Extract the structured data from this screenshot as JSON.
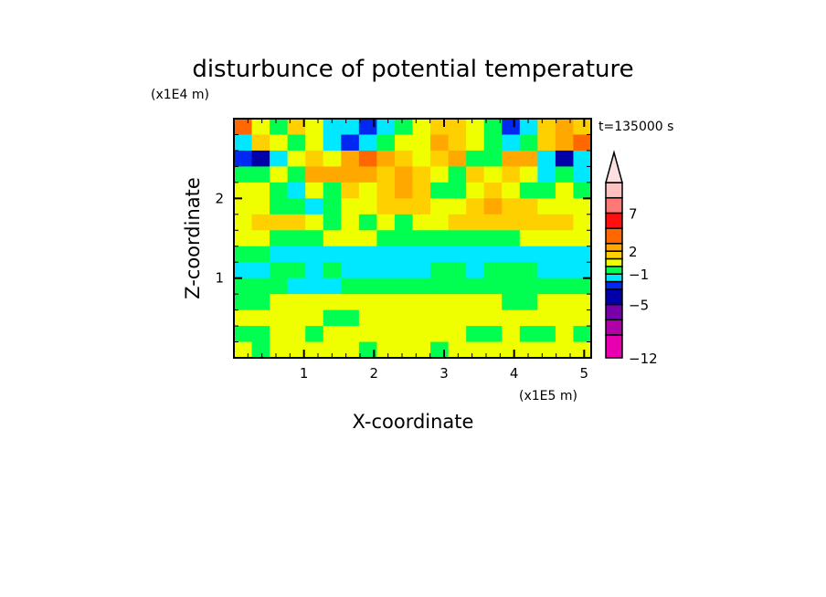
{
  "chart_data": {
    "type": "heatmap",
    "title": "disturbunce of potential temperature",
    "xlabel": "X-coordinate",
    "ylabel": "Z-coordinate",
    "x_unit": "(x1E5 m)",
    "y_unit": "(x1E4 m)",
    "annotation": "t=135000 s",
    "xlim": [
      0,
      5.1
    ],
    "ylim": [
      0,
      3.0
    ],
    "x_ticks": [
      "1",
      "2",
      "3",
      "4",
      "5"
    ],
    "x_tick_values": [
      1,
      2,
      3,
      4,
      5
    ],
    "y_ticks": [
      "1",
      "2"
    ],
    "y_tick_values": [
      1,
      2
    ],
    "minor_tick_step": 0.2,
    "grid": false,
    "colorbar": {
      "levels": [
        -12,
        -9,
        -7,
        -5,
        -3,
        -2,
        -1,
        0,
        1,
        2,
        3,
        5,
        7,
        9,
        11
      ],
      "colors": [
        "#e800b0",
        "#b000a8",
        "#7800a8",
        "#0000a8",
        "#0028f0",
        "#00e8ff",
        "#00ff50",
        "#f0ff00",
        "#ffd000",
        "#ffa800",
        "#ff6800",
        "#ff1010",
        "#ff7878",
        "#ffc0c0"
      ],
      "over_color": "#ffe0e0",
      "labels": [
        "-12",
        "-5",
        "-1",
        "2",
        "7"
      ],
      "label_values": [
        -12,
        -5,
        -1,
        2,
        7
      ]
    },
    "grid_x_centers": [
      0.13,
      0.38,
      0.64,
      0.89,
      1.15,
      1.4,
      1.66,
      1.91,
      2.17,
      2.42,
      2.68,
      2.93,
      3.19,
      3.44,
      3.7,
      3.95,
      4.21,
      4.46,
      4.72,
      4.97
    ],
    "grid_z_centers": [
      2.9,
      2.7,
      2.5,
      2.3,
      2.1,
      1.9,
      1.7,
      1.5,
      1.3,
      1.1,
      0.9,
      0.7,
      0.5,
      0.3,
      0.1
    ],
    "values": [
      [
        3,
        0.5,
        -0.5,
        1.5,
        0.5,
        -1.5,
        -1.5,
        -2.5,
        -1.5,
        -0.5,
        0.5,
        1.5,
        1.5,
        0.5,
        -0.5,
        -2.5,
        -1.5,
        1.5,
        2.5,
        1.5
      ],
      [
        -1.5,
        1.5,
        0.5,
        -0.5,
        0.5,
        -1.5,
        -2.5,
        -1.5,
        -0.5,
        0.5,
        0.5,
        2.5,
        1.5,
        0.5,
        -0.5,
        -1.5,
        -0.5,
        1.5,
        2.5,
        4
      ],
      [
        -2.5,
        -4,
        -1.5,
        0.5,
        1.5,
        0.5,
        2.5,
        4,
        2.5,
        1.5,
        0.5,
        1.5,
        2.5,
        -0.5,
        -0.5,
        2.5,
        2.5,
        -1.5,
        -4,
        -1.5
      ],
      [
        -0.5,
        -0.5,
        0.5,
        -0.5,
        2.5,
        2.5,
        2.5,
        2.5,
        1.5,
        2.5,
        1.5,
        0.5,
        -0.5,
        1.5,
        0.5,
        1.5,
        0.5,
        -1.5,
        -0.5,
        -1.5
      ],
      [
        0.5,
        0.5,
        -0.5,
        -1.5,
        0.5,
        -0.5,
        1.5,
        0.5,
        1.5,
        2.5,
        1.5,
        -0.5,
        -0.5,
        0.5,
        1.5,
        0.5,
        -0.5,
        -0.5,
        0.5,
        -0.5
      ],
      [
        0.5,
        0.5,
        -0.5,
        -0.5,
        -1.5,
        -0.5,
        0.5,
        0.5,
        1.5,
        1.5,
        1.5,
        0.5,
        0.5,
        1.5,
        2.5,
        1.5,
        1.5,
        0.5,
        0.5,
        0.5
      ],
      [
        0.5,
        1.5,
        1.5,
        1.5,
        0.5,
        -0.5,
        0.5,
        -0.5,
        0.5,
        -0.5,
        0.5,
        0.5,
        1.5,
        1.5,
        1.5,
        1.5,
        1.5,
        1.5,
        1.5,
        0.5
      ],
      [
        0.5,
        0.5,
        -0.5,
        -0.5,
        -0.5,
        0.5,
        0.5,
        0.5,
        -0.5,
        -0.5,
        -0.5,
        -0.5,
        -0.5,
        -0.5,
        -0.5,
        -0.5,
        0.5,
        0.5,
        0.5,
        0.5
      ],
      [
        -0.5,
        -0.5,
        -1.5,
        -1.5,
        -1.5,
        -1.5,
        -1.5,
        -1.5,
        -1.5,
        -1.5,
        -1.5,
        -1.5,
        -1.5,
        -1.5,
        -1.5,
        -1.5,
        -1.5,
        -1.5,
        -1.5,
        -1.5
      ],
      [
        -1.5,
        -1.5,
        -0.5,
        -0.5,
        -1.5,
        -0.5,
        -1.5,
        -1.5,
        -1.5,
        -1.5,
        -1.5,
        -0.5,
        -0.5,
        -1.5,
        -0.5,
        -0.5,
        -0.5,
        -1.5,
        -1.5,
        -1.5
      ],
      [
        -0.5,
        -0.5,
        -0.5,
        -1.5,
        -1.5,
        -1.5,
        -0.5,
        -0.5,
        -0.5,
        -0.5,
        -0.5,
        -0.5,
        -0.5,
        -0.5,
        -0.5,
        -0.5,
        -0.5,
        -0.5,
        -0.5,
        -0.5
      ],
      [
        -0.5,
        -0.5,
        0.5,
        0.5,
        0.5,
        0.5,
        0.5,
        0.5,
        0.5,
        0.5,
        0.5,
        0.5,
        0.5,
        0.5,
        0.5,
        -0.5,
        -0.5,
        0.5,
        0.5,
        0.5
      ],
      [
        0.5,
        0.5,
        0.5,
        0.5,
        0.5,
        -0.5,
        -0.5,
        0.5,
        0.5,
        0.5,
        0.5,
        0.5,
        0.5,
        0.5,
        0.5,
        0.5,
        0.5,
        0.5,
        0.5,
        0.5
      ],
      [
        -0.5,
        -0.5,
        0.5,
        0.5,
        -0.5,
        0.5,
        0.5,
        0.5,
        0.5,
        0.5,
        0.5,
        0.5,
        0.5,
        -0.5,
        -0.5,
        0.5,
        -0.5,
        -0.5,
        0.5,
        -0.5
      ],
      [
        0.5,
        -0.5,
        0.5,
        0.5,
        0.5,
        0.5,
        0.5,
        -0.5,
        0.5,
        0.5,
        0.5,
        -0.5,
        0.5,
        0.5,
        0.5,
        0.5,
        0.5,
        0.5,
        0.5,
        0.5
      ]
    ]
  }
}
